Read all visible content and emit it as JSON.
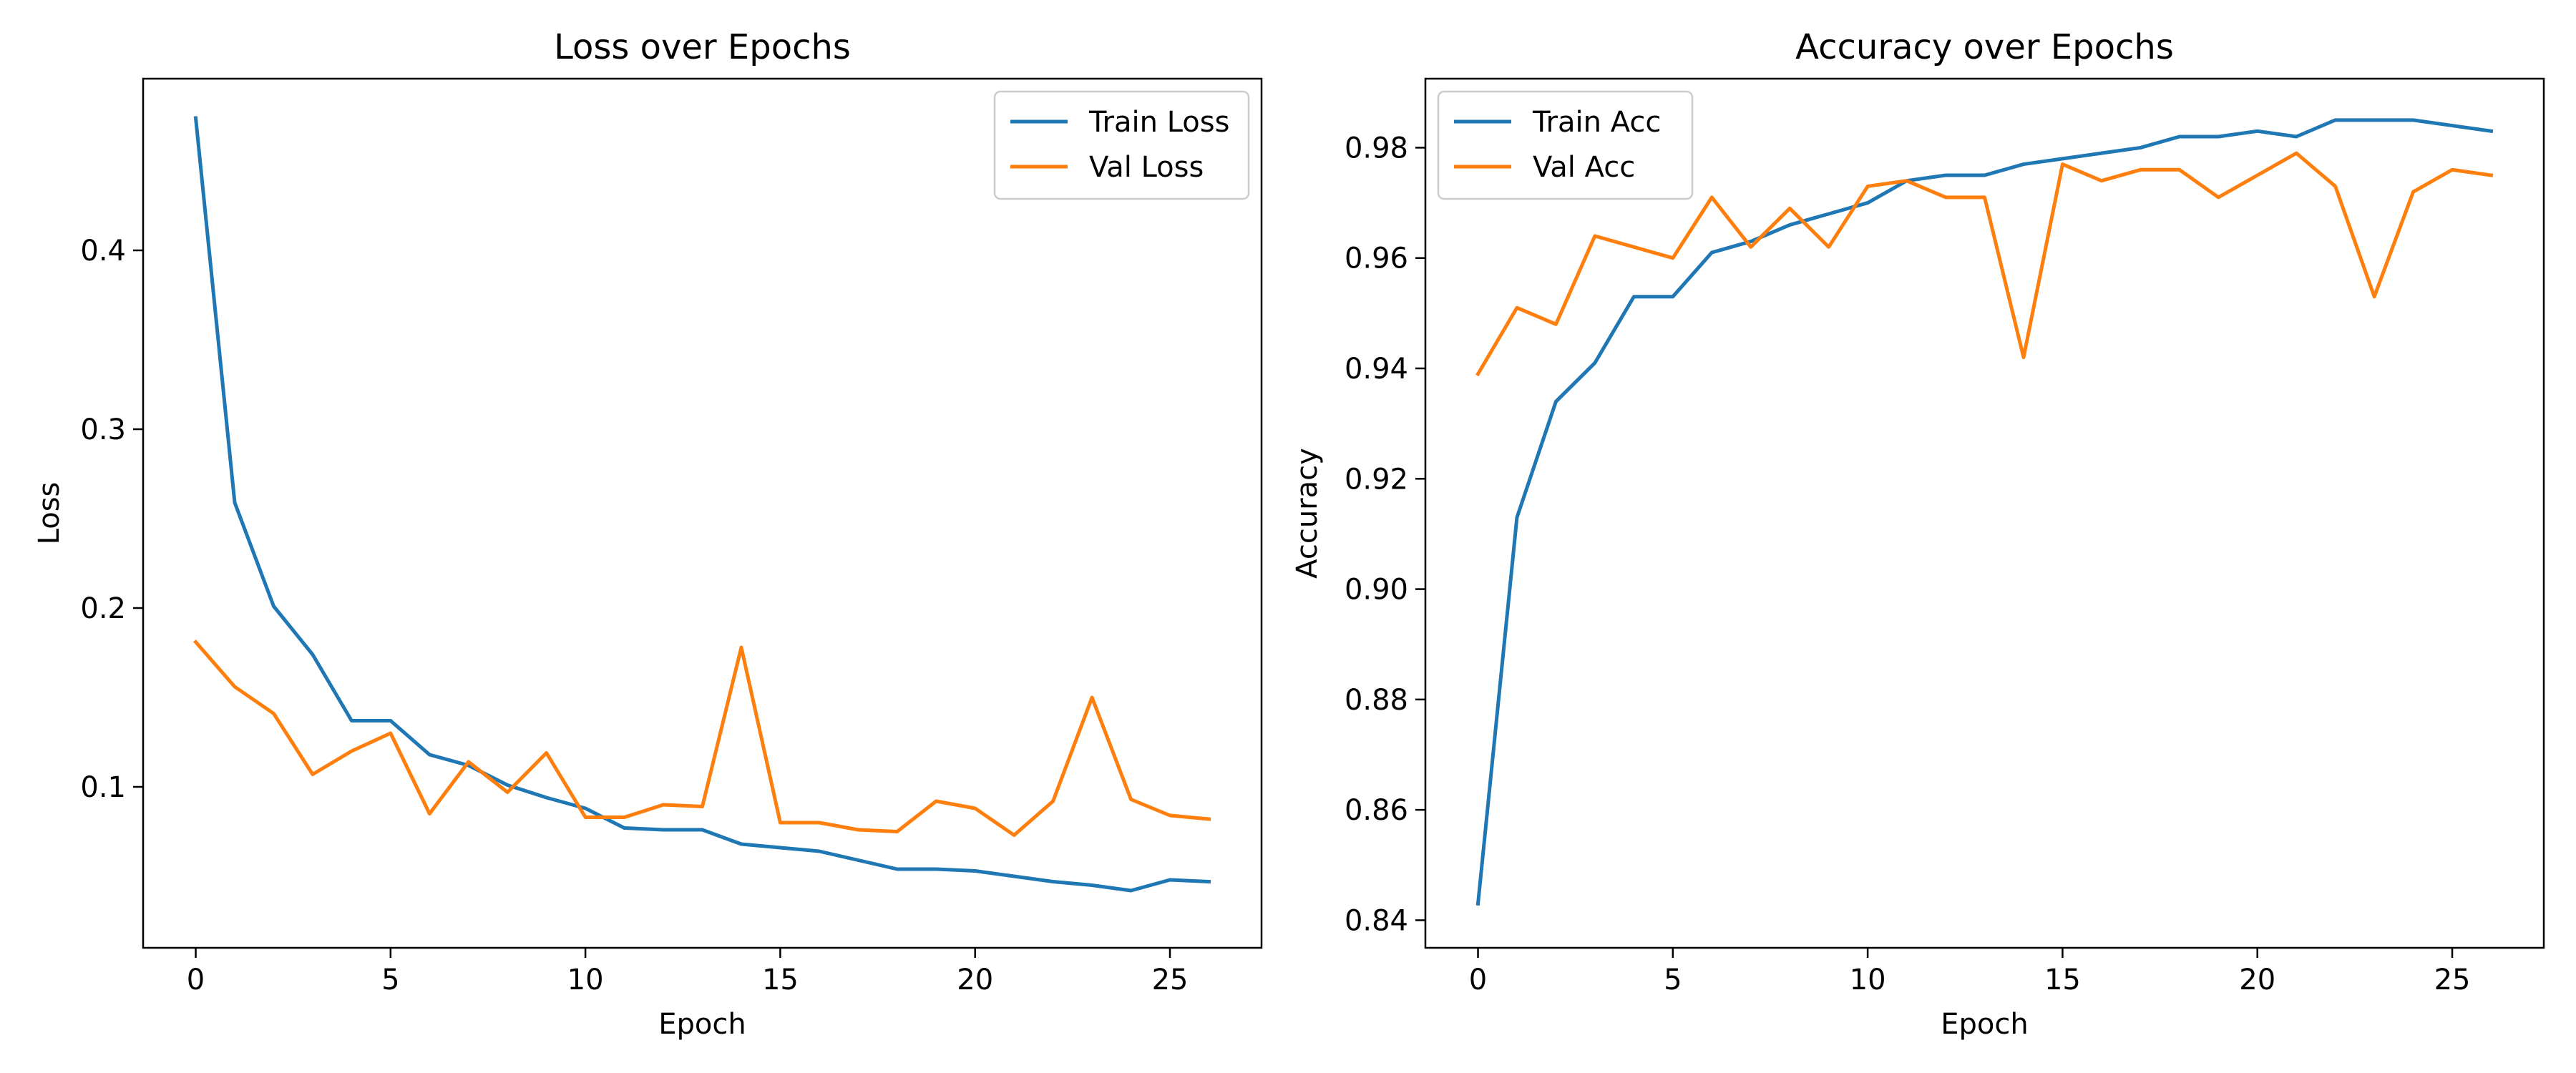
{
  "chart_data": [
    {
      "type": "line",
      "title": "Loss over Epochs",
      "xlabel": "Epoch",
      "ylabel": "Loss",
      "xlim": [
        -1.35,
        27.35
      ],
      "ylim": [
        0.01,
        0.496
      ],
      "xticks": [
        0,
        5,
        10,
        15,
        20,
        25
      ],
      "xtick_labels": [
        "0",
        "5",
        "10",
        "15",
        "20",
        "25"
      ],
      "yticks": [
        0.1,
        0.2,
        0.3,
        0.4
      ],
      "ytick_labels": [
        "0.1",
        "0.2",
        "0.3",
        "0.4"
      ],
      "grid": false,
      "legend_position": "upper right",
      "x": [
        0,
        1,
        2,
        3,
        4,
        5,
        6,
        7,
        8,
        9,
        10,
        11,
        12,
        13,
        14,
        15,
        16,
        17,
        18,
        19,
        20,
        21,
        22,
        23,
        24,
        25,
        26
      ],
      "series": [
        {
          "name": "Train Loss",
          "color": "#1f77b4",
          "values": [
            0.474,
            0.259,
            0.201,
            0.174,
            0.137,
            0.137,
            0.118,
            0.112,
            0.101,
            0.094,
            0.088,
            0.077,
            0.076,
            0.076,
            0.068,
            0.066,
            0.064,
            0.059,
            0.054,
            0.054,
            0.053,
            0.05,
            0.047,
            0.045,
            0.042,
            0.048,
            0.047
          ]
        },
        {
          "name": "Val Loss",
          "color": "#ff7f0e",
          "values": [
            0.181,
            0.156,
            0.141,
            0.107,
            0.12,
            0.13,
            0.085,
            0.114,
            0.097,
            0.119,
            0.083,
            0.083,
            0.09,
            0.089,
            0.178,
            0.08,
            0.08,
            0.076,
            0.075,
            0.092,
            0.088,
            0.073,
            0.092,
            0.15,
            0.093,
            0.084,
            0.082
          ]
        }
      ]
    },
    {
      "type": "line",
      "title": "Accuracy over Epochs",
      "xlabel": "Epoch",
      "ylabel": "Accuracy",
      "xlim": [
        -1.35,
        27.35
      ],
      "ylim": [
        0.835,
        0.9925
      ],
      "xticks": [
        0,
        5,
        10,
        15,
        20,
        25
      ],
      "xtick_labels": [
        "0",
        "5",
        "10",
        "15",
        "20",
        "25"
      ],
      "yticks": [
        0.84,
        0.86,
        0.88,
        0.9,
        0.92,
        0.94,
        0.96,
        0.98
      ],
      "ytick_labels": [
        "0.84",
        "0.86",
        "0.88",
        "0.90",
        "0.92",
        "0.94",
        "0.96",
        "0.98"
      ],
      "grid": false,
      "legend_position": "upper left",
      "x": [
        0,
        1,
        2,
        3,
        4,
        5,
        6,
        7,
        8,
        9,
        10,
        11,
        12,
        13,
        14,
        15,
        16,
        17,
        18,
        19,
        20,
        21,
        22,
        23,
        24,
        25,
        26
      ],
      "series": [
        {
          "name": "Train Acc",
          "color": "#1f77b4",
          "values": [
            0.843,
            0.913,
            0.934,
            0.941,
            0.953,
            0.953,
            0.961,
            0.963,
            0.966,
            0.968,
            0.97,
            0.974,
            0.975,
            0.975,
            0.977,
            0.978,
            0.979,
            0.98,
            0.982,
            0.982,
            0.983,
            0.982,
            0.985,
            0.985,
            0.985,
            0.984,
            0.983
          ]
        },
        {
          "name": "Val Acc",
          "color": "#ff7f0e",
          "values": [
            0.939,
            0.951,
            0.948,
            0.964,
            0.962,
            0.96,
            0.971,
            0.962,
            0.969,
            0.962,
            0.973,
            0.974,
            0.971,
            0.971,
            0.942,
            0.977,
            0.974,
            0.976,
            0.976,
            0.971,
            0.975,
            0.979,
            0.973,
            0.953,
            0.972,
            0.976,
            0.975
          ]
        }
      ]
    }
  ]
}
